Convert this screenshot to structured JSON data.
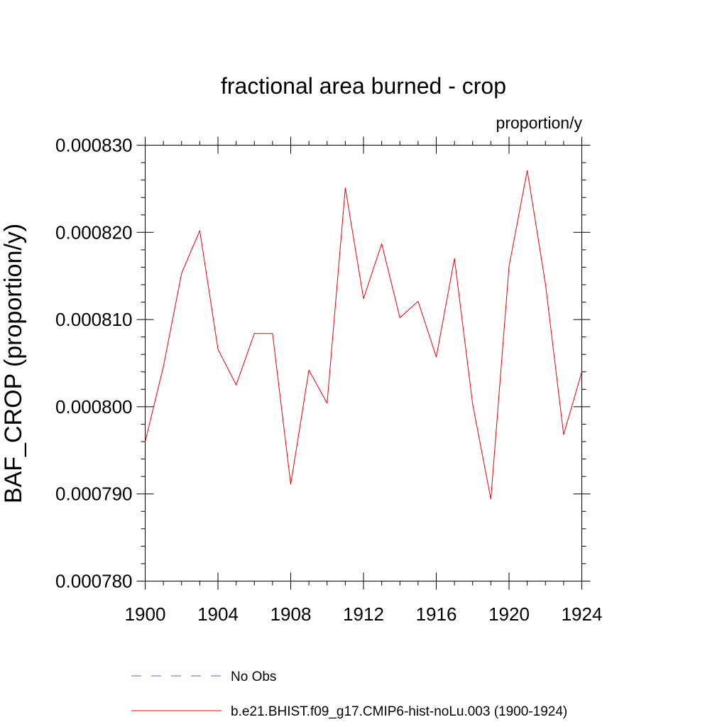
{
  "chart_data": {
    "type": "line",
    "title": "fractional area burned - crop",
    "units_label": "proportion/y",
    "ylabel": "BAF_CROP  (proportion/y)",
    "xlabel": "",
    "xlim": [
      1900,
      1924
    ],
    "ylim": [
      0.00078,
      0.00083
    ],
    "x_ticks": [
      1900,
      1904,
      1908,
      1912,
      1916,
      1920,
      1924
    ],
    "x_tick_labels": [
      "1900",
      "1904",
      "1908",
      "1912",
      "1916",
      "1920",
      "1924"
    ],
    "y_ticks": [
      0.00078,
      0.00079,
      0.0008,
      0.00081,
      0.00082,
      0.00083
    ],
    "y_tick_labels": [
      "0.000780",
      "0.000790",
      "0.000800",
      "0.000810",
      "0.000820",
      "0.000830"
    ],
    "grid": false,
    "legend_position": "bottom",
    "series": [
      {
        "name": "b.e21.BHIST.f09_g17.CMIP6-hist-noLu.003 (1900-1924)",
        "color": "#e8000b",
        "style": "solid",
        "x": [
          1900,
          1901,
          1902,
          1903,
          1904,
          1905,
          1906,
          1907,
          1908,
          1909,
          1910,
          1911,
          1912,
          1913,
          1914,
          1915,
          1916,
          1917,
          1918,
          1919,
          1920,
          1921,
          1922,
          1923,
          1924
        ],
        "y": [
          0.000796,
          0.0008046,
          0.0008153,
          0.0008202,
          0.0008066,
          0.0008025,
          0.0008084,
          0.0008084,
          0.0007911,
          0.0008042,
          0.0008004,
          0.0008251,
          0.0008124,
          0.0008187,
          0.0008102,
          0.0008121,
          0.0008057,
          0.000817,
          0.0008003,
          0.0007894,
          0.0008161,
          0.0008271,
          0.0008141,
          0.0007968,
          0.000804
        ]
      }
    ],
    "legend": [
      {
        "label": "No Obs",
        "color": "#6a5acd",
        "style": "dashed"
      },
      {
        "label": "b.e21.BHIST.f09_g17.CMIP6-hist-noLu.003 (1900-1924)",
        "color": "#e8000b",
        "style": "solid"
      }
    ]
  }
}
